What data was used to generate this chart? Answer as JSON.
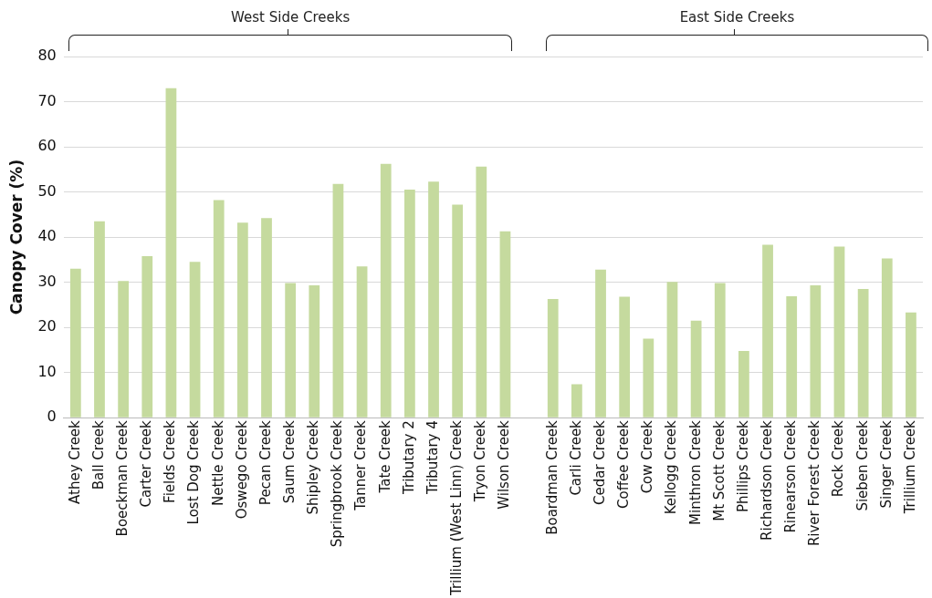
{
  "chart_data": {
    "type": "bar",
    "ylabel": "Canopy Cover (%)",
    "categories": [
      "Athey Creek",
      "Ball Creek",
      "Boeckman Creek",
      "Carter Creek",
      "Fields Creek",
      "Lost Dog Creek",
      "Nettle Creek",
      "Oswego Creek",
      "Pecan Creek",
      "Saum Creek",
      "Shipley Creek",
      "Springbrook Creek",
      "Tanner Creek",
      "Tate Creek",
      "Tributary 2",
      "Tributary 4",
      "Trillium (West Linn) Creek",
      "Tryon Creek",
      "Wilson Creek",
      null,
      "Boardman Creek",
      "Carli Creek",
      "Cedar Creek",
      "Coffee Creek",
      "Cow Creek",
      "Kellogg Creek",
      "Minthron Creek",
      "Mt Scott Creek",
      "Phillips Creek",
      "Richardson Creek",
      "Rinearson Creek",
      "River Forest Creek",
      "Rock Creek",
      "Sieben Creek",
      "Singer Creek",
      "Trillium Creek"
    ],
    "values": [
      33,
      43.5,
      30.3,
      35.8,
      73,
      34.5,
      48.2,
      43.2,
      44.2,
      29.8,
      29.3,
      51.8,
      33.5,
      56.2,
      50.5,
      52.3,
      47.2,
      55.6,
      41.3,
      null,
      26.3,
      7.4,
      32.8,
      26.8,
      17.5,
      30.1,
      21.5,
      29.8,
      14.8,
      38.3,
      26.9,
      29.3,
      37.9,
      28.5,
      35.3,
      23.3
    ],
    "color": "#c5da9e",
    "ylim": [
      0,
      80
    ],
    "yticks": [
      0,
      10,
      20,
      30,
      40,
      50,
      60,
      70,
      80
    ],
    "grid": "y",
    "legend": false,
    "annotations": [
      "West Side Creeks",
      "East Side Creeks"
    ]
  }
}
